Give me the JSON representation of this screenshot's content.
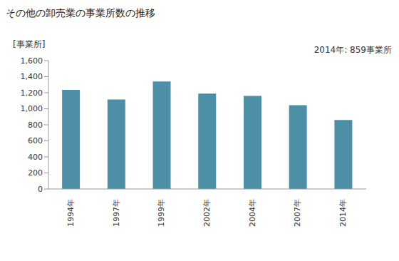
{
  "chart_data": {
    "type": "bar",
    "title": "その他の卸売業の事業所数の推移",
    "y_label": "[事業所]",
    "annotation": "2014年: 859事業所",
    "categories": [
      "1994年",
      "1997年",
      "1999年",
      "2002年",
      "2004年",
      "2007年",
      "2014年"
    ],
    "values": [
      1235,
      1115,
      1340,
      1190,
      1160,
      1045,
      859
    ],
    "color": "#4e8fa8",
    "ylim": [
      0,
      1600
    ],
    "yticks": [
      0,
      200,
      400,
      600,
      {
        "value": 800,
        "label": "800"
      },
      {
        "value": 1000,
        "label": "1,000"
      },
      {
        "value": 1200,
        "label": "1,200"
      },
      {
        "value": 1400,
        "label": "1,400"
      },
      {
        "value": 1600,
        "label": "1,600"
      }
    ],
    "grid": false
  }
}
